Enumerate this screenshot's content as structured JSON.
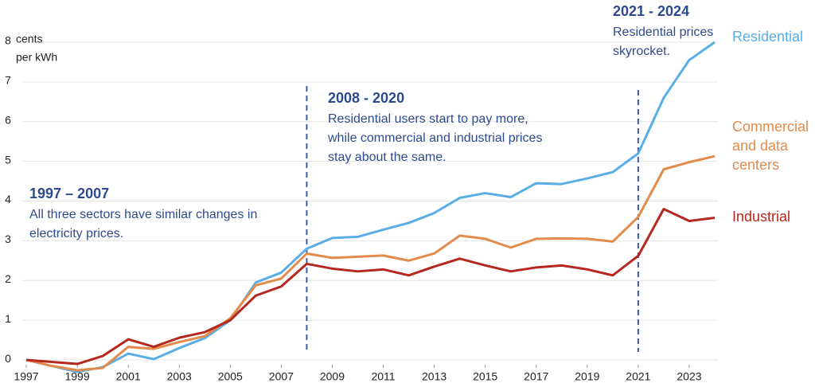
{
  "chart_data": {
    "type": "line",
    "y_label": [
      "cents",
      "per kWh"
    ],
    "x": [
      1997,
      1998,
      1999,
      2000,
      2001,
      2002,
      2003,
      2004,
      2005,
      2006,
      2007,
      2008,
      2009,
      2010,
      2011,
      2012,
      2013,
      2014,
      2015,
      2016,
      2017,
      2018,
      2019,
      2020,
      2021,
      2022,
      2023,
      2024
    ],
    "xlim": [
      1997,
      2024
    ],
    "xticks": [
      1997,
      1999,
      2001,
      2003,
      2005,
      2007,
      2009,
      2011,
      2013,
      2015,
      2017,
      2019,
      2021,
      2023
    ],
    "ylim": [
      -0.4,
      8
    ],
    "yticks": [
      0,
      1,
      2,
      3,
      4,
      5,
      6,
      7,
      8
    ],
    "grid": true,
    "series": [
      {
        "name": "Residential",
        "color": "#5aaee6",
        "values": [
          0,
          -0.15,
          -0.3,
          -0.18,
          0.16,
          0.02,
          0.3,
          0.55,
          1.0,
          1.95,
          2.2,
          2.8,
          3.07,
          3.1,
          3.28,
          3.45,
          3.7,
          4.08,
          4.2,
          4.1,
          4.45,
          4.43,
          4.57,
          4.73,
          5.2,
          6.6,
          7.55,
          8.0
        ]
      },
      {
        "name": "Commercial and data centers",
        "color": "#e38b4a",
        "values": [
          0,
          -0.15,
          -0.26,
          -0.2,
          0.33,
          0.28,
          0.45,
          0.6,
          1.05,
          1.88,
          2.05,
          2.68,
          2.57,
          2.6,
          2.63,
          2.5,
          2.68,
          3.13,
          3.05,
          2.83,
          3.05,
          3.06,
          3.05,
          2.98,
          3.6,
          4.8,
          4.98,
          5.13
        ]
      },
      {
        "name": "Industrial",
        "color": "#b5271f",
        "values": [
          0,
          -0.05,
          -0.1,
          0.1,
          0.52,
          0.33,
          0.56,
          0.7,
          1.0,
          1.62,
          1.85,
          2.42,
          2.3,
          2.23,
          2.28,
          2.13,
          2.35,
          2.55,
          2.38,
          2.23,
          2.33,
          2.38,
          2.28,
          2.13,
          2.62,
          3.8,
          3.5,
          3.58
        ]
      }
    ],
    "vlines": [
      2008,
      2021
    ],
    "annotations": [
      {
        "title": "1997 – 2007",
        "lines": [
          "All three sectors have similar changes in",
          "electricity prices."
        ]
      },
      {
        "title": "2008 - 2020",
        "lines": [
          "Residential users start to pay more,",
          "while commercial and industrial prices",
          "stay about the same."
        ]
      },
      {
        "title": "2021 - 2024",
        "lines": [
          "Residential prices",
          "skyrocket."
        ]
      }
    ]
  }
}
